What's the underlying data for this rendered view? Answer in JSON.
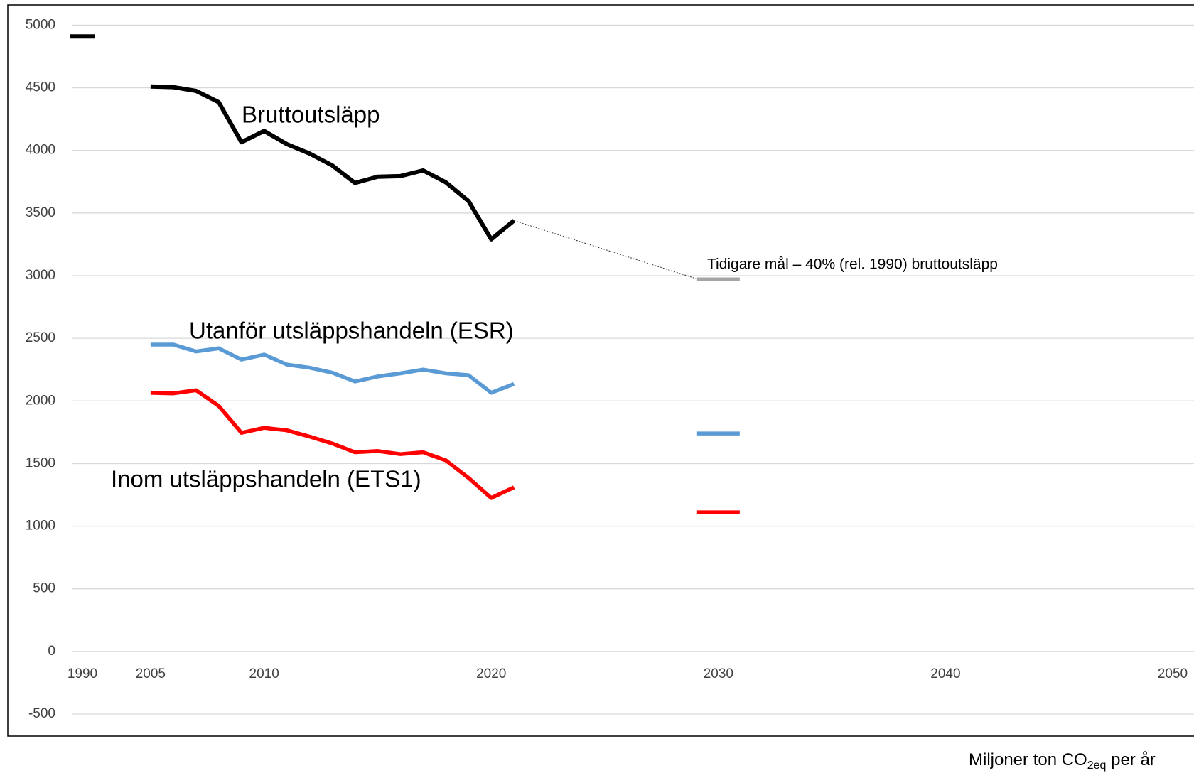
{
  "chart_data": {
    "type": "line",
    "categories": [
      "1990",
      null,
      null,
      "2005",
      null,
      null,
      null,
      null,
      "2010",
      null,
      null,
      null,
      null,
      null,
      null,
      null,
      null,
      null,
      "2020",
      null,
      null,
      null,
      null,
      null,
      null,
      null,
      null,
      null,
      "2030",
      null,
      null,
      null,
      null,
      null,
      null,
      null,
      null,
      null,
      "2040",
      null,
      null,
      null,
      null,
      null,
      null,
      null,
      null,
      null,
      "2050"
    ],
    "series": [
      {
        "name": "Bruttoutsläpp",
        "color": "#000000",
        "values": [
          4910,
          null,
          null,
          4510,
          4505,
          4475,
          4385,
          4065,
          4155,
          4050,
          3975,
          3880,
          3740,
          3790,
          3795,
          3840,
          3745,
          3595,
          3290,
          3440,
          null,
          null,
          null,
          null,
          null,
          null,
          null,
          null,
          null,
          null,
          null,
          null,
          null,
          null,
          null,
          null,
          null,
          null,
          null,
          null,
          null,
          null,
          null,
          null,
          null,
          null,
          null,
          null,
          null
        ]
      },
      {
        "name": "Utanför utsläppshandeln (ESR)",
        "color": "#5b9bd5",
        "values": [
          null,
          null,
          null,
          2450,
          2450,
          2395,
          2420,
          2330,
          2370,
          2290,
          2265,
          2225,
          2155,
          2195,
          2220,
          2250,
          2220,
          2205,
          2065,
          2135,
          null,
          null,
          null,
          null,
          null,
          null,
          null,
          null,
          1740,
          null,
          null,
          null,
          null,
          null,
          null,
          null,
          null,
          null,
          null,
          null,
          null,
          null,
          null,
          null,
          null,
          null,
          null,
          null,
          null
        ]
      },
      {
        "name": "Inom utsläppshandeln (ETS1)",
        "color": "#ff0000",
        "values": [
          null,
          null,
          null,
          2065,
          2060,
          2085,
          1960,
          1745,
          1785,
          1765,
          1715,
          1660,
          1590,
          1600,
          1575,
          1590,
          1525,
          1385,
          1225,
          1310,
          null,
          null,
          null,
          null,
          null,
          null,
          null,
          null,
          1110,
          null,
          null,
          null,
          null,
          null,
          null,
          null,
          null,
          null,
          null,
          null,
          null,
          null,
          null,
          null,
          null,
          null,
          null,
          null,
          null
        ]
      },
      {
        "name": "Tidigare mål – 40% (rel. 1990) bruttoutsläpp",
        "color": "#a5a5a5",
        "values": [
          null,
          null,
          null,
          null,
          null,
          null,
          null,
          null,
          null,
          null,
          null,
          null,
          null,
          null,
          null,
          null,
          null,
          null,
          null,
          null,
          null,
          null,
          null,
          null,
          null,
          null,
          null,
          null,
          2970,
          null,
          null,
          null,
          null,
          null,
          null,
          null,
          null,
          null,
          null,
          null,
          null,
          null,
          null,
          null,
          null,
          null,
          null,
          null,
          null
        ]
      }
    ],
    "ylim": [
      -500,
      5000
    ],
    "yticks": [
      -500,
      0,
      500,
      1000,
      1500,
      2000,
      2500,
      3000,
      3500,
      4000,
      4500,
      5000
    ],
    "grid": true,
    "ylabel_parts": [
      "Miljoner ton CO",
      "2eq",
      " per år"
    ]
  }
}
